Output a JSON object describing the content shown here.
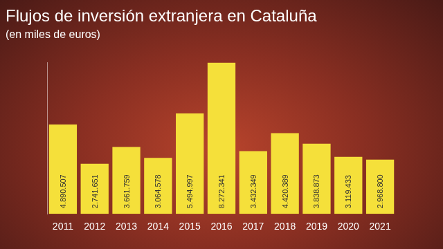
{
  "chart_data": {
    "type": "bar",
    "title": "Flujos de inversión extranjera en Cataluña",
    "subtitle": "(en miles de euros)",
    "categories": [
      "2011",
      "2012",
      "2013",
      "2014",
      "2015",
      "2016",
      "2017",
      "2018",
      "2019",
      "2020",
      "2021"
    ],
    "values": [
      4890507,
      2741651,
      3661759,
      3064578,
      5494997,
      8272341,
      3432349,
      4420389,
      3838873,
      3119433,
      2968800
    ],
    "value_labels": [
      "4.890.507",
      "2.741.651",
      "3.661.759",
      "3.064.578",
      "5.494.997",
      "8.272.341",
      "3.432.349",
      "4.420.389",
      "3.838.873",
      "3.119.433",
      "2.968.800"
    ],
    "color": "#f5e03a",
    "ylim": [
      0,
      8300000
    ],
    "grid": false,
    "data_labels": true,
    "tick_labels": "x"
  }
}
